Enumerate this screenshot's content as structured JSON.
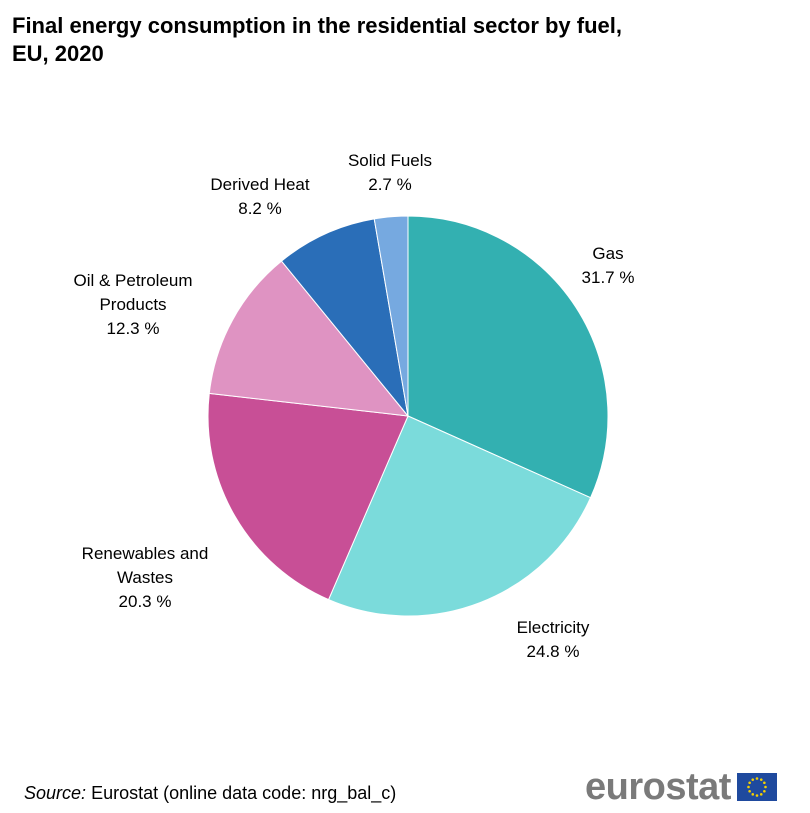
{
  "chart_data": {
    "type": "pie",
    "title": "Final energy consumption in the residential sector by fuel, EU, 2020",
    "unit": "%",
    "slices": [
      {
        "name": "Gas",
        "value": 31.7,
        "value_label": "31.7 %",
        "label_lines": [
          "Gas"
        ],
        "color": "#33b0b1"
      },
      {
        "name": "Electricity",
        "value": 24.8,
        "value_label": "24.8 %",
        "label_lines": [
          "Electricity"
        ],
        "color": "#7bdbdb"
      },
      {
        "name": "Renewables and Wastes",
        "value": 20.3,
        "value_label": "20.3 %",
        "label_lines": [
          "Renewables and",
          "Wastes"
        ],
        "color": "#c84f96"
      },
      {
        "name": "Oil & Petroleum Products",
        "value": 12.3,
        "value_label": "12.3 %",
        "label_lines": [
          "Oil & Petroleum",
          "Products"
        ],
        "color": "#df93c2"
      },
      {
        "name": "Derived Heat",
        "value": 8.2,
        "value_label": "8.2 %",
        "label_lines": [
          "Derived Heat"
        ],
        "color": "#2a6eb8"
      },
      {
        "name": "Solid Fuels",
        "value": 2.7,
        "value_label": "2.7 %",
        "label_lines": [
          "Solid Fuels"
        ],
        "color": "#76a9e0"
      }
    ]
  },
  "source": {
    "label": "Source:",
    "text": "Eurostat (online data code: nrg_bal_c)"
  },
  "logo": {
    "text": "eurostat",
    "flag_color": "#1f4a9e",
    "star_color": "#f5d000"
  }
}
